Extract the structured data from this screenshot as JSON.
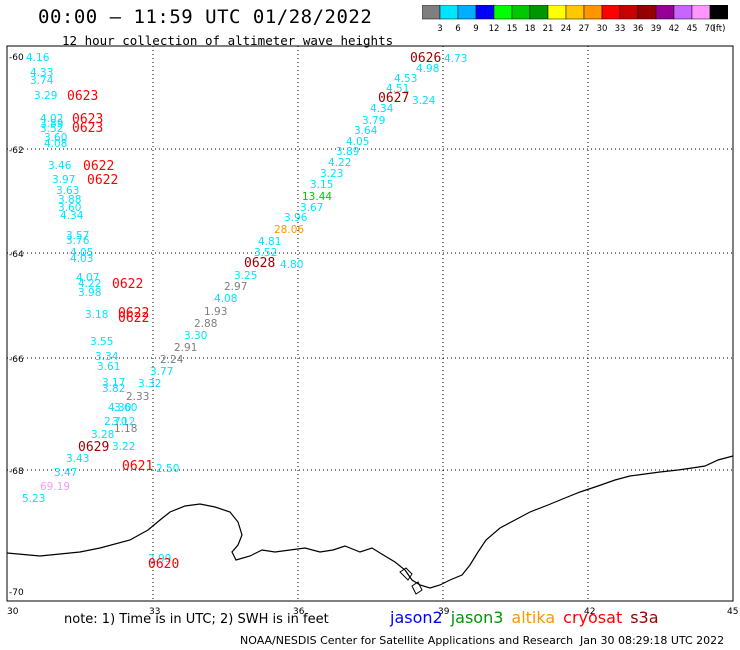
{
  "header": {
    "title": "00:00 – 11:59 UTC 01/28/2022",
    "subtitle": "12 hour collection of altimeter wave heights"
  },
  "colorbar": {
    "labels": [
      "3",
      "6",
      "9",
      "12",
      "15",
      "18",
      "21",
      "24",
      "27",
      "30",
      "33",
      "36",
      "39",
      "42",
      "45",
      "70",
      "(ft)"
    ],
    "colors": [
      "#7f7f7f",
      "#00e5ff",
      "#00b0ff",
      "#0000ff",
      "#00ff00",
      "#00c800",
      "#009600",
      "#ffff00",
      "#ffc800",
      "#ff9600",
      "#ff0000",
      "#c80000",
      "#960000",
      "#960096",
      "#c864ff",
      "#ff96ff",
      "#000000"
    ]
  },
  "map": {
    "lat_labels": [
      "-60",
      "-62",
      "-64",
      "-66",
      "-68",
      "-70"
    ],
    "lon_labels": [
      "30",
      "33",
      "36",
      "39",
      "42",
      "45"
    ],
    "points": [
      {
        "t": "4.16",
        "c": "#00e5ff"
      },
      {
        "t": "4.33",
        "c": "#00e5ff"
      },
      {
        "t": "3.74",
        "c": "#00e5ff"
      },
      {
        "t": "3.29",
        "c": "#00e5ff"
      },
      {
        "t": "0623",
        "c": "#ff0000"
      },
      {
        "t": "4.02",
        "c": "#00e5ff"
      },
      {
        "t": "3.89",
        "c": "#00e5ff"
      },
      {
        "t": "3.52",
        "c": "#00e5ff"
      },
      {
        "t": "0623",
        "c": "#ff0000"
      },
      {
        "t": "0623",
        "c": "#ff0000"
      },
      {
        "t": "3.60",
        "c": "#00e5ff"
      },
      {
        "t": "4.08",
        "c": "#00e5ff"
      },
      {
        "t": "3.46",
        "c": "#00e5ff"
      },
      {
        "t": "0622",
        "c": "#ff0000"
      },
      {
        "t": "3.97",
        "c": "#00e5ff"
      },
      {
        "t": "0622",
        "c": "#ff0000"
      },
      {
        "t": "3.63",
        "c": "#00e5ff"
      },
      {
        "t": "3.88",
        "c": "#00e5ff"
      },
      {
        "t": "3.60",
        "c": "#00e5ff"
      },
      {
        "t": "4.34",
        "c": "#00e5ff"
      },
      {
        "t": "3.57",
        "c": "#00e5ff"
      },
      {
        "t": "3.76",
        "c": "#00e5ff"
      },
      {
        "t": "4.05",
        "c": "#00e5ff"
      },
      {
        "t": "4.03",
        "c": "#00e5ff"
      },
      {
        "t": "4.07",
        "c": "#00e5ff"
      },
      {
        "t": "4.22",
        "c": "#00e5ff"
      },
      {
        "t": "0622",
        "c": "#ff0000"
      },
      {
        "t": "3.98",
        "c": "#00e5ff"
      },
      {
        "t": "3.18",
        "c": "#00e5ff"
      },
      {
        "t": "0622",
        "c": "#ff0000"
      },
      {
        "t": "0622",
        "c": "#ff0000"
      },
      {
        "t": "3.55",
        "c": "#00e5ff"
      },
      {
        "t": "3.34",
        "c": "#00e5ff"
      },
      {
        "t": "3.61",
        "c": "#00e5ff"
      },
      {
        "t": "3.17",
        "c": "#00e5ff"
      },
      {
        "t": "3.82",
        "c": "#00e5ff"
      },
      {
        "t": "4.30",
        "c": "#00e5ff"
      },
      {
        "t": "3.60",
        "c": "#00e5ff"
      },
      {
        "t": "3.12",
        "c": "#00e5ff"
      },
      {
        "t": "3.28",
        "c": "#00e5ff"
      },
      {
        "t": "0629",
        "c": "#960000"
      },
      {
        "t": "3.22",
        "c": "#00e5ff"
      },
      {
        "t": "3.43",
        "c": "#00e5ff"
      },
      {
        "t": "3.47",
        "c": "#00e5ff"
      },
      {
        "t": "69.19",
        "c": "#ff96ff"
      },
      {
        "t": "5.23",
        "c": "#00e5ff"
      },
      {
        "t": "0626",
        "c": "#960000"
      },
      {
        "t": "4.73",
        "c": "#00e5ff"
      },
      {
        "t": "4.98",
        "c": "#00e5ff"
      },
      {
        "t": "4.53",
        "c": "#00e5ff"
      },
      {
        "t": "4.51",
        "c": "#00e5ff"
      },
      {
        "t": "0627",
        "c": "#960000"
      },
      {
        "t": "3.24",
        "c": "#00e5ff"
      },
      {
        "t": "4.34",
        "c": "#00e5ff"
      },
      {
        "t": "3.79",
        "c": "#00e5ff"
      },
      {
        "t": "3.64",
        "c": "#00e5ff"
      },
      {
        "t": "4.05",
        "c": "#00e5ff"
      },
      {
        "t": "3.89",
        "c": "#00e5ff"
      },
      {
        "t": "4.22",
        "c": "#00e5ff"
      },
      {
        "t": "3.23",
        "c": "#00e5ff"
      },
      {
        "t": "3.15",
        "c": "#00e5ff"
      },
      {
        "t": "13.44",
        "c": "#00c800"
      },
      {
        "t": "3.67",
        "c": "#00e5ff"
      },
      {
        "t": "3.96",
        "c": "#00e5ff"
      },
      {
        "t": "28.06",
        "c": "#ff9600"
      },
      {
        "t": "4.81",
        "c": "#00e5ff"
      },
      {
        "t": "3.52",
        "c": "#00e5ff"
      },
      {
        "t": "0628",
        "c": "#960000"
      },
      {
        "t": "4.80",
        "c": "#00e5ff"
      },
      {
        "t": "3.25",
        "c": "#00e5ff"
      },
      {
        "t": "2.97",
        "c": "#7f7f7f"
      },
      {
        "t": "4.08",
        "c": "#00e5ff"
      },
      {
        "t": "1.93",
        "c": "#7f7f7f"
      },
      {
        "t": "2.88",
        "c": "#7f7f7f"
      },
      {
        "t": "3.30",
        "c": "#00e5ff"
      },
      {
        "t": "2.91",
        "c": "#7f7f7f"
      },
      {
        "t": "2.24",
        "c": "#7f7f7f"
      },
      {
        "t": "3.77",
        "c": "#00e5ff"
      },
      {
        "t": "3.32",
        "c": "#00e5ff"
      },
      {
        "t": "2.33",
        "c": "#7f7f7f"
      },
      {
        "t": "2.70",
        "c": "#00e5ff"
      },
      {
        "t": "1.18",
        "c": "#7f7f7f"
      },
      {
        "t": "0621",
        "c": "#ff0000"
      },
      {
        "t": "2.50",
        "c": "#00e5ff"
      },
      {
        "t": "2.99",
        "c": "#00e5ff"
      },
      {
        "t": "0620",
        "c": "#ff0000"
      }
    ]
  },
  "footer": {
    "note": "note:  1)  Time is in UTC;  2)  SWH is in feet",
    "legend": [
      {
        "name": "jason2",
        "color": "#0000ff"
      },
      {
        "name": "jason3",
        "color": "#009600"
      },
      {
        "name": "altika",
        "color": "#ff9600"
      },
      {
        "name": "cryosat",
        "color": "#ff0000"
      },
      {
        "name": "s3a",
        "color": "#960000"
      }
    ],
    "credit": "NOAA/NESDIS Center for Satellite Applications and Research",
    "timestamp": "Jan 30 08:29:18 UTC 2022"
  }
}
